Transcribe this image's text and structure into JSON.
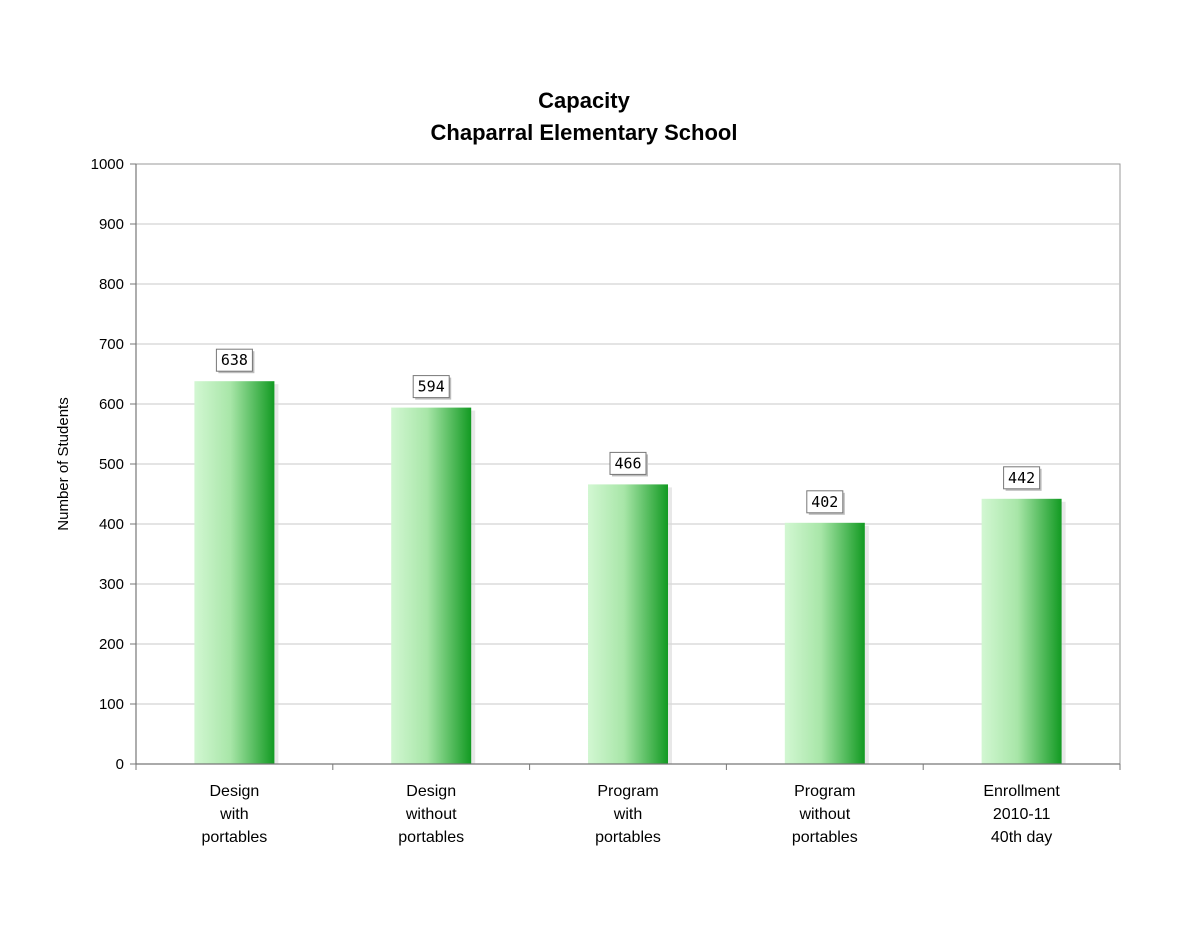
{
  "chart_data": {
    "type": "bar",
    "title": [
      "Capacity",
      "Chaparral Elementary School"
    ],
    "xlabel": "",
    "ylabel": "Number of Students",
    "ylim": [
      0,
      1000
    ],
    "yticks": [
      0,
      100,
      200,
      300,
      400,
      500,
      600,
      700,
      800,
      900,
      1000
    ],
    "grid": true,
    "legend": "none",
    "categories": [
      [
        "Design",
        "with",
        "portables"
      ],
      [
        "Design",
        "without",
        "portables"
      ],
      [
        "Program",
        "with",
        "portables"
      ],
      [
        "Program",
        "without",
        "portables"
      ],
      [
        "Enrollment",
        "2010-11",
        "40th day"
      ]
    ],
    "values": [
      638,
      594,
      466,
      402,
      442
    ],
    "colors": {
      "bar_light": "#c8f5c8",
      "bar_dark": "#1a9e2a",
      "grid": "#c8c8c8",
      "axis": "#888888"
    }
  }
}
